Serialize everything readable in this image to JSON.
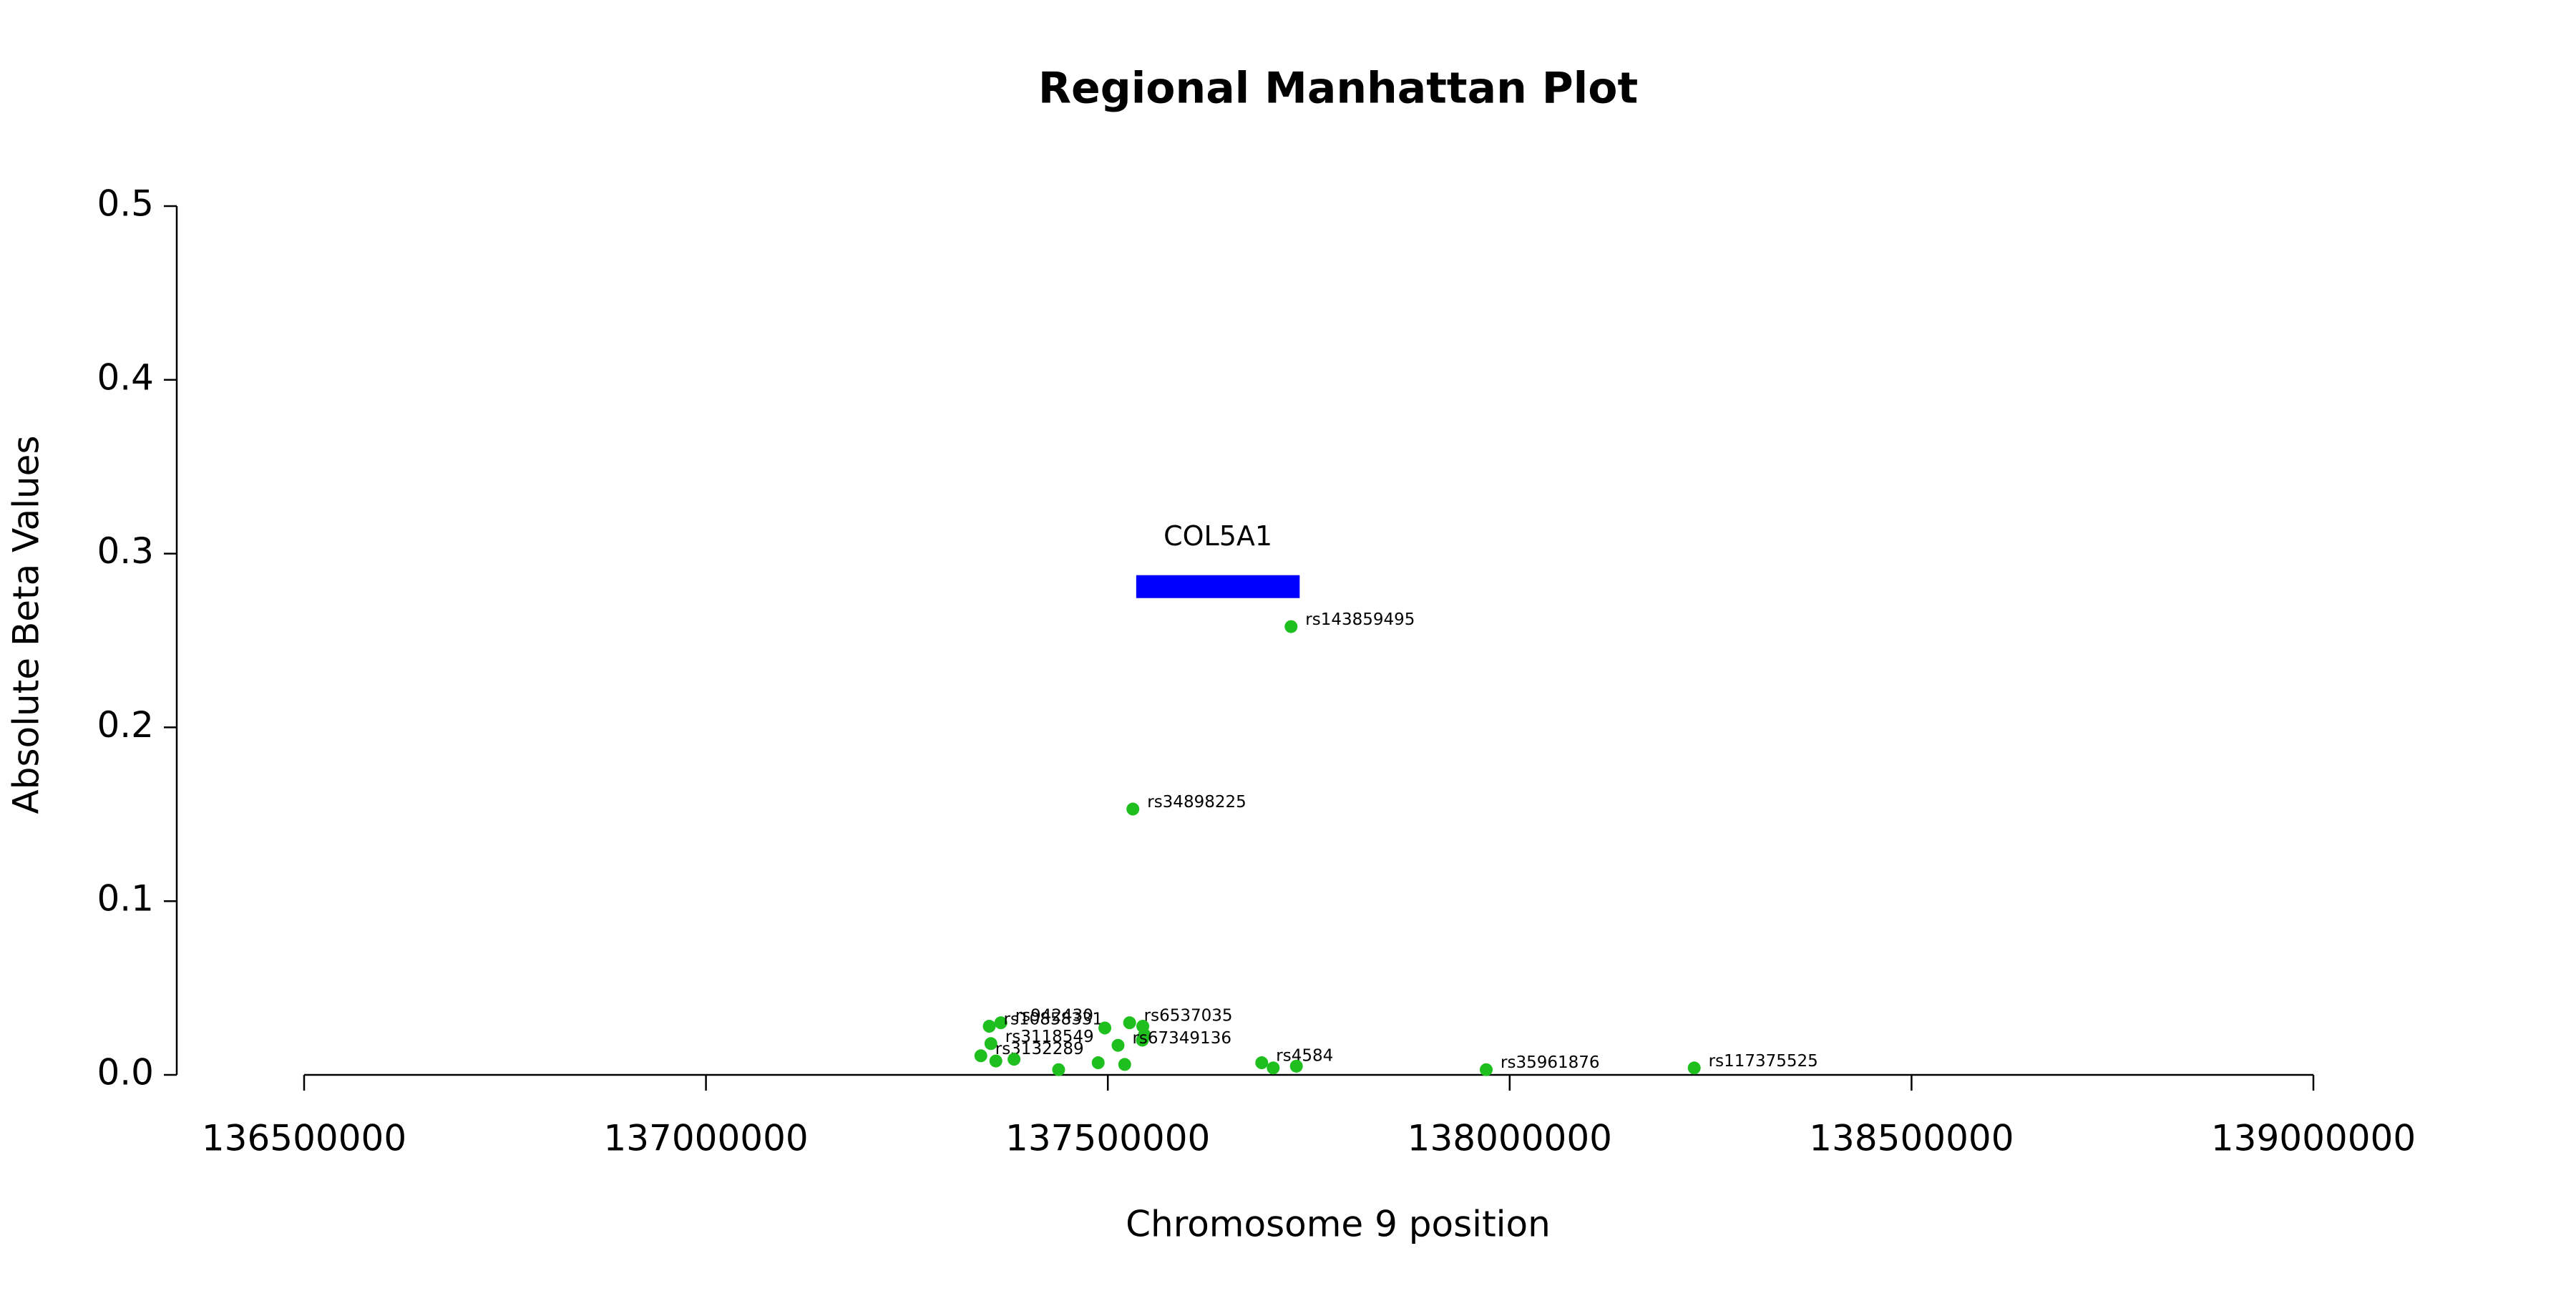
{
  "chart_data": {
    "type": "scatter",
    "title": "Regional Manhattan Plot",
    "xlabel": "Chromosome 9 position",
    "ylabel": "Absolute Beta Values",
    "xlim": [
      136500000,
      139000000
    ],
    "ylim": [
      0,
      0.5
    ],
    "xticks": [
      136500000,
      137000000,
      137500000,
      138000000,
      138500000,
      139000000
    ],
    "yticks": [
      {
        "value": 0,
        "label": "0.0"
      },
      0.1,
      0.2,
      0.3,
      0.4,
      0.5
    ],
    "series": [
      {
        "color": "#1fbf1f",
        "x": [
          137728000,
          137531200,
          137366900,
          137352500,
          137354500,
          137342000,
          137527100,
          137496300,
          137543500,
          137545600,
          137543000,
          137512700,
          137360700,
          137383300,
          137438800,
          137488000,
          137521000,
          137691500,
          137705800,
          137734600,
          137970800,
          138229600
        ],
        "values": [
          0.258,
          0.153,
          0.03,
          0.028,
          0.018,
          0.011,
          0.03,
          0.027,
          0.028,
          0.023,
          0.02,
          0.017,
          0.008,
          0.009,
          0.003,
          0.007,
          0.006,
          0.007,
          0.004,
          0.005,
          0.003,
          0.004
        ],
        "labels": [
          "rs143859495",
          "rs34898225",
          "rs942430",
          "rs10858331",
          "rs3118549",
          "rs3132289",
          "rs6537035",
          null,
          null,
          null,
          null,
          "rs67349136",
          null,
          null,
          null,
          null,
          null,
          "rs4584",
          null,
          null,
          "rs35961876",
          "rs117375525"
        ]
      }
    ],
    "genes": [
      {
        "name": "COL5A1",
        "start": 137535300,
        "end": 137738700,
        "y": 0.281,
        "color": "#0000ff"
      }
    ]
  }
}
